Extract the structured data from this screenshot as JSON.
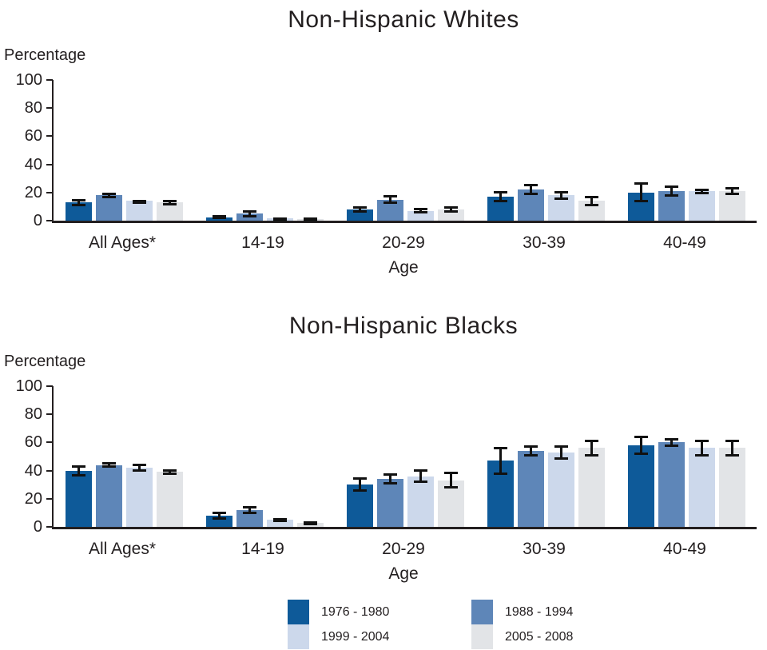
{
  "colors": {
    "series_1976_1980": "#0E5A99",
    "series_1988_1994": "#5E86B8",
    "series_1999_2004": "#CCD8EB",
    "series_2005_2008": "#E2E4E7",
    "axis": "#231F20",
    "error_bar": "#111111"
  },
  "legend": [
    {
      "label": "1976 - 1980",
      "color": "#0E5A99"
    },
    {
      "label": "1988 - 1994",
      "color": "#5E86B8"
    },
    {
      "label": "1999 - 2004",
      "color": "#CCD8EB"
    },
    {
      "label": "2005 - 2008",
      "color": "#E2E4E7"
    }
  ],
  "chart_data": [
    {
      "type": "bar",
      "title": "Non-Hispanic Whites",
      "xlabel": "Age",
      "ylabel": "Percentage",
      "ylim": [
        0,
        100
      ],
      "yticks": [
        0,
        20,
        40,
        60,
        80,
        100
      ],
      "grid": false,
      "error_bars": true,
      "categories": [
        "All Ages*",
        "14-19",
        "20-29",
        "30-39",
        "40-49"
      ],
      "series": [
        {
          "name": "1976 - 1980",
          "color": "#0E5A99",
          "values": [
            13,
            2.5,
            8,
            17,
            20
          ],
          "errors": [
            2.5,
            1.5,
            2.5,
            4,
            7
          ]
        },
        {
          "name": "1988 - 1994",
          "color": "#5E86B8",
          "values": [
            18,
            5,
            15,
            22,
            21
          ],
          "errors": [
            2,
            2.5,
            3,
            4,
            4
          ]
        },
        {
          "name": "1999 - 2004",
          "color": "#CCD8EB",
          "values": [
            14,
            1.5,
            7,
            18,
            21
          ],
          "errors": [
            1,
            0.5,
            2,
            3,
            2
          ]
        },
        {
          "name": "2005 - 2008",
          "color": "#E2E4E7",
          "values": [
            13,
            1,
            8,
            14,
            21
          ],
          "errors": [
            2,
            1,
            2.5,
            3.5,
            3
          ]
        }
      ]
    },
    {
      "type": "bar",
      "title": "Non-Hispanic Blacks",
      "xlabel": "Age",
      "ylabel": "Percentage",
      "ylim": [
        0,
        100
      ],
      "yticks": [
        0,
        20,
        40,
        60,
        80,
        100
      ],
      "grid": false,
      "error_bars": true,
      "categories": [
        "All Ages*",
        "14-19",
        "20-29",
        "30-39",
        "40-49"
      ],
      "series": [
        {
          "name": "1976 - 1980",
          "color": "#0E5A99",
          "values": [
            40,
            8,
            30,
            47,
            58
          ],
          "errors": [
            4,
            3,
            5,
            10,
            7
          ]
        },
        {
          "name": "1988 - 1994",
          "color": "#5E86B8",
          "values": [
            44,
            12,
            34,
            54,
            60
          ],
          "errors": [
            2,
            3,
            4,
            4,
            3
          ]
        },
        {
          "name": "1999 - 2004",
          "color": "#CCD8EB",
          "values": [
            42,
            5,
            36,
            53,
            56
          ],
          "errors": [
            3,
            1.5,
            5,
            5,
            6
          ]
        },
        {
          "name": "2005 - 2008",
          "color": "#E2E4E7",
          "values": [
            39,
            3,
            33,
            56,
            56
          ],
          "errors": [
            2,
            1,
            6,
            6,
            6
          ]
        }
      ]
    }
  ]
}
